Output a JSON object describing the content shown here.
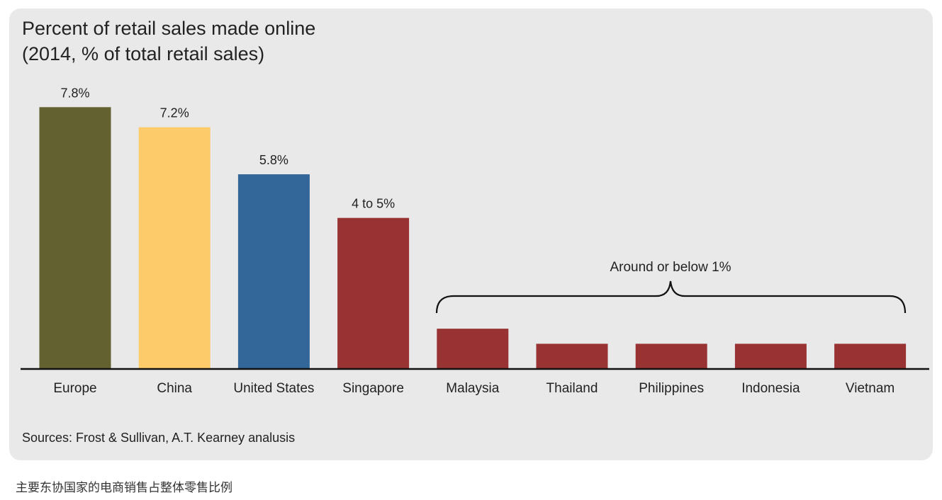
{
  "chart_data": {
    "type": "bar",
    "title": "Percent of retail sales made online",
    "subtitle": "(2014, % of total retail sales)",
    "categories": [
      "Europe",
      "China",
      "United States",
      "Singapore",
      "Malaysia",
      "Thailand",
      "Philippines",
      "Indonesia",
      "Vietnam"
    ],
    "values": [
      7.8,
      7.2,
      5.8,
      4.5,
      1.2,
      0.75,
      0.75,
      0.75,
      0.75
    ],
    "data_labels": [
      "7.8%",
      "7.2%",
      "5.8%",
      "4 to 5%",
      "",
      "",
      "",
      "",
      ""
    ],
    "colors": [
      "#646130",
      "#fdcb6a",
      "#336699",
      "#993333",
      "#993333",
      "#993333",
      "#993333",
      "#993333",
      "#993333"
    ],
    "annotation": "Around or below 1%",
    "ylim": [
      0,
      8
    ],
    "grid": false,
    "legend": "none",
    "xlabel": "",
    "ylabel": ""
  },
  "source": "Sources: Frost & Sullivan, A.T. Kearney analusis",
  "caption": "主要东协国家的电商销售占整体零售比例"
}
